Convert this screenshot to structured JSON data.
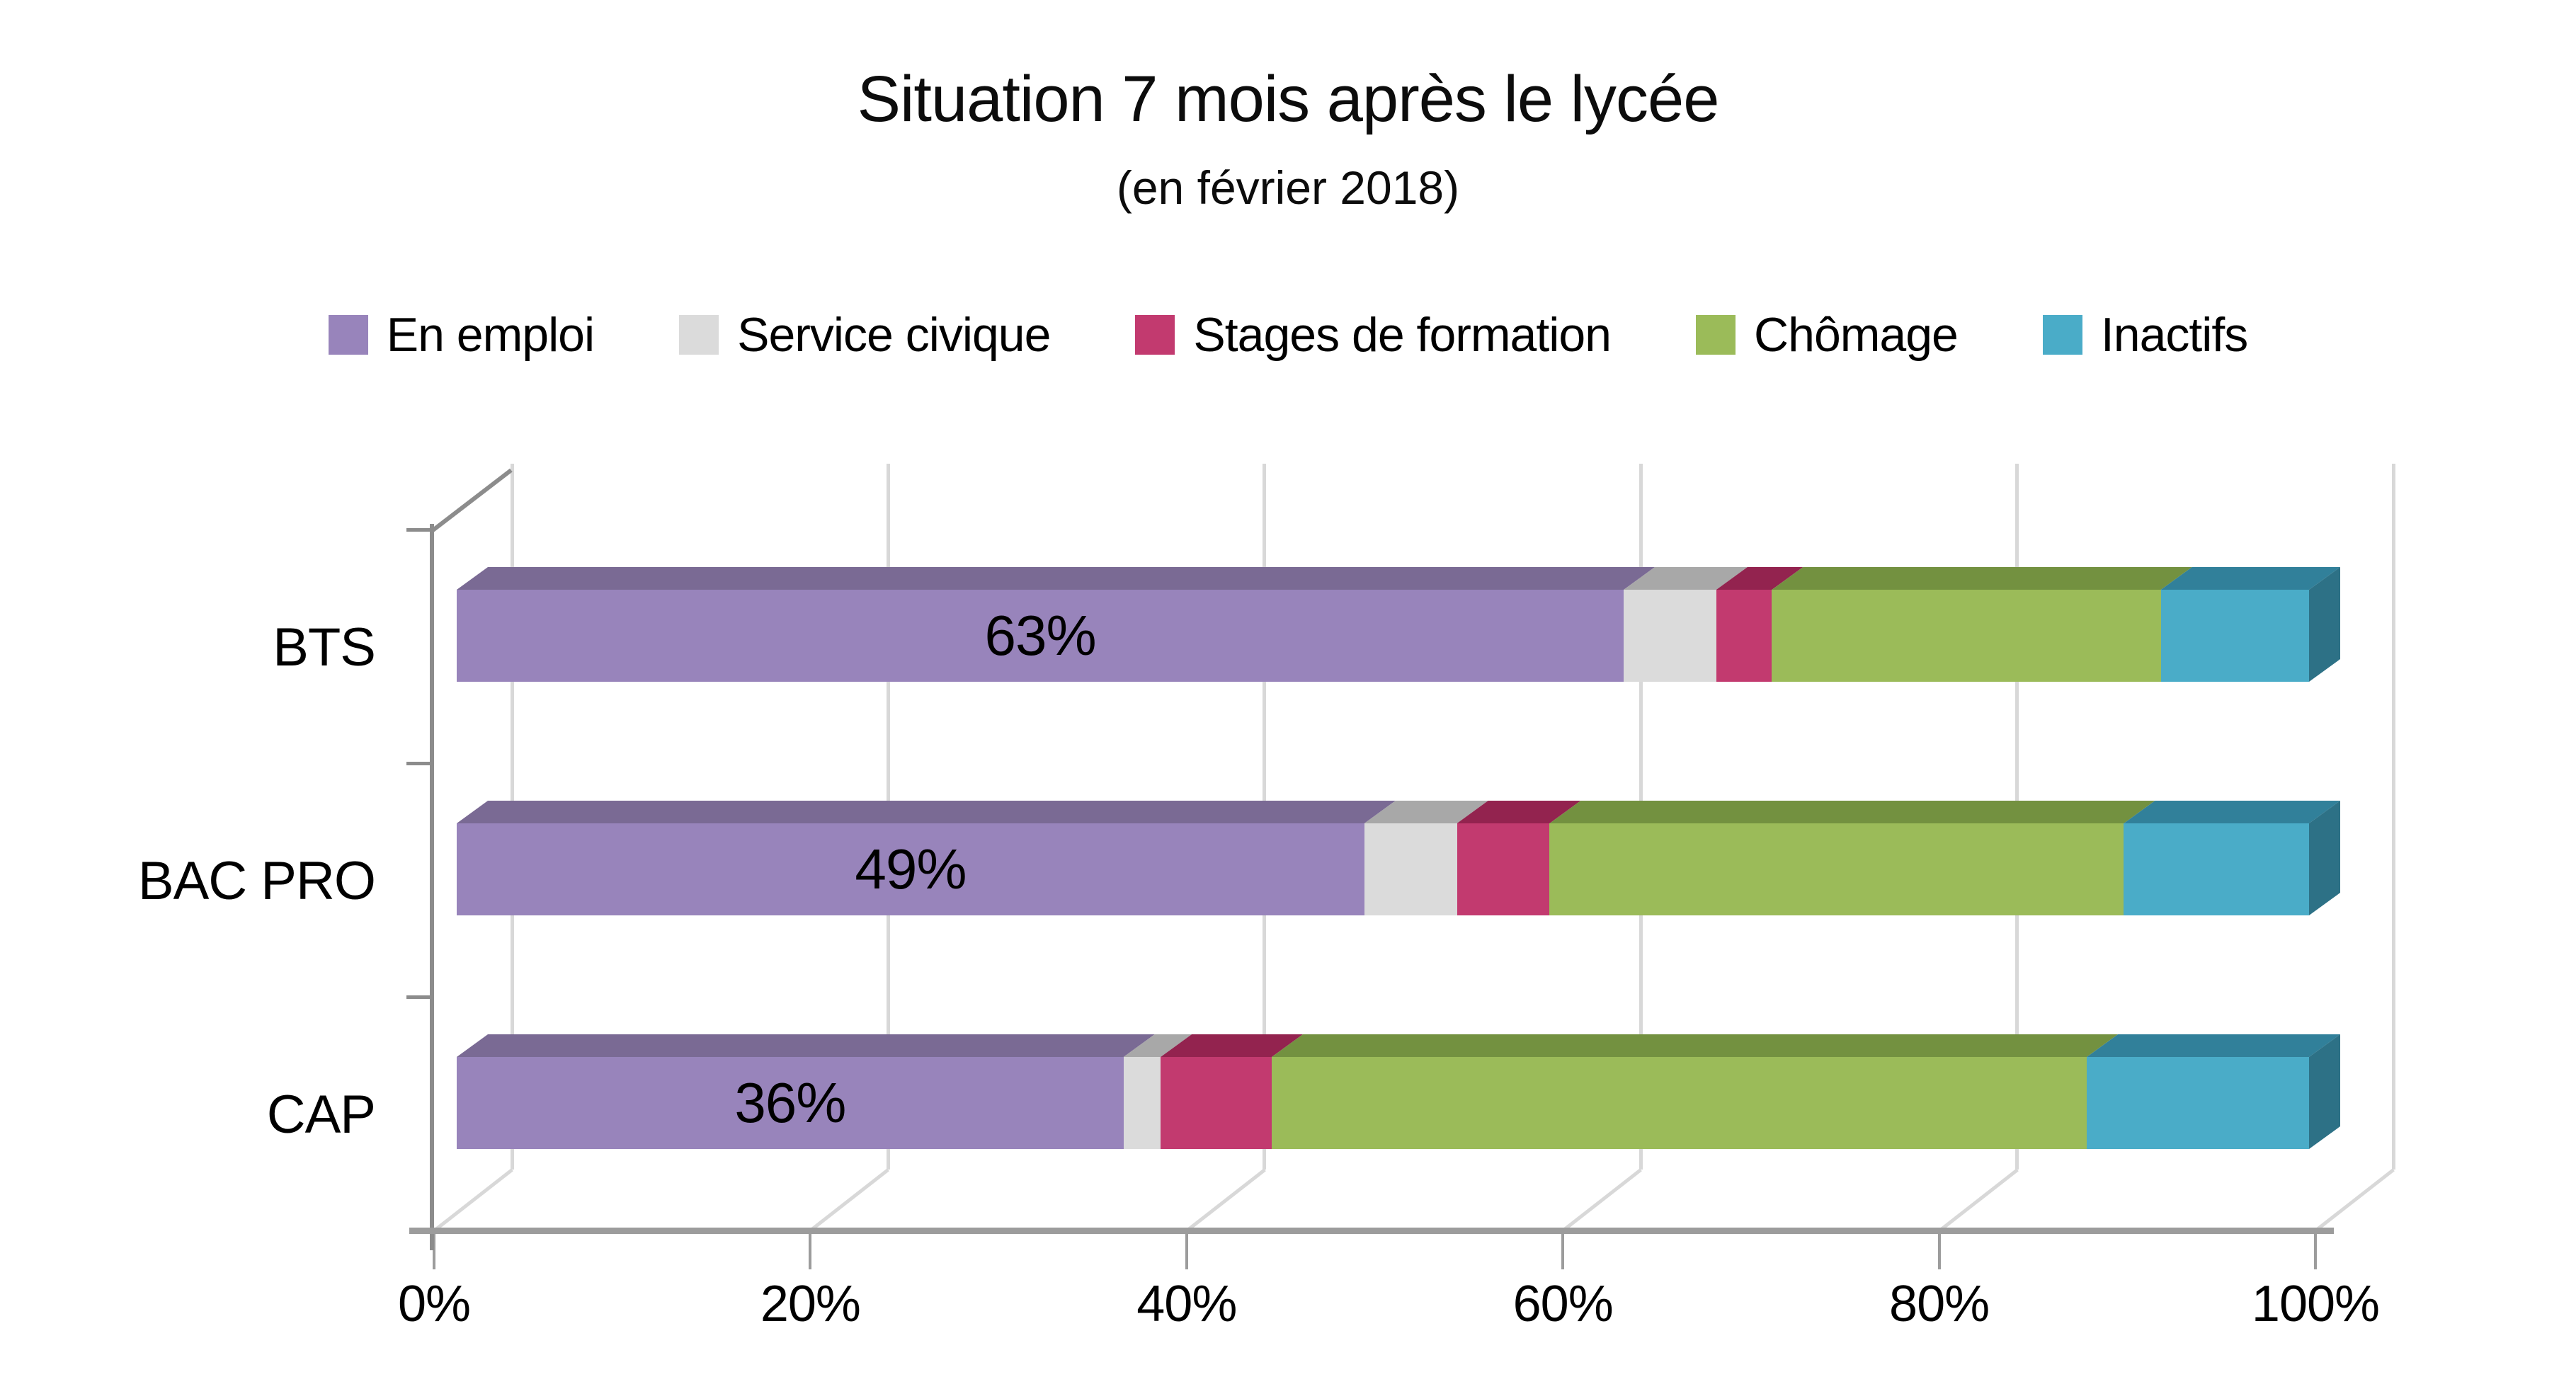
{
  "title": "Situation 7 mois après le lycée",
  "subtitle": "(en février 2018)",
  "legend": [
    {
      "label": "En emploi",
      "color": "#9884BB"
    },
    {
      "label": "Service civique",
      "color": "#DBDBDB"
    },
    {
      "label": "Stages de formation",
      "color": "#C23A6F"
    },
    {
      "label": "Chômage",
      "color": "#9BBB59"
    },
    {
      "label": "Inactifs",
      "color": "#4AACC8"
    }
  ],
  "chart_data": {
    "type": "bar",
    "orientation": "horizontal",
    "stacked": true,
    "unit": "%",
    "title": "Situation 7 mois après le lycée",
    "subtitle": "(en février 2018)",
    "categories": [
      "BTS",
      "BAC PRO",
      "CAP"
    ],
    "series": [
      {
        "name": "En emploi",
        "color": "#9884BB",
        "color_dark": "#7A6A94",
        "values": [
          63,
          49,
          36
        ]
      },
      {
        "name": "Service civique",
        "color": "#DBDBDB",
        "color_dark": "#A8A8A8",
        "values": [
          5,
          5,
          2
        ]
      },
      {
        "name": "Stages de formation",
        "color": "#C23A6F",
        "color_dark": "#93234F",
        "values": [
          3,
          5,
          6
        ]
      },
      {
        "name": "Chômage",
        "color": "#9BBB59",
        "color_dark": "#739140",
        "values": [
          21,
          31,
          44
        ]
      },
      {
        "name": "Inactifs",
        "color": "#4AACC8",
        "color_dark": "#31809A",
        "values": [
          8,
          10,
          12
        ]
      }
    ],
    "side_face_color": "#2D7186",
    "value_labels": [
      "63%",
      "49%",
      "36%"
    ],
    "value_labels_series": "En emploi",
    "x_ticks": [
      "0%",
      "20%",
      "40%",
      "60%",
      "80%",
      "100%"
    ],
    "x_tick_values": [
      0,
      20,
      40,
      60,
      80,
      100
    ],
    "x_range": [
      0,
      100
    ],
    "gridlines": true,
    "legend_position": "top",
    "projection": "3d-cabinet"
  }
}
